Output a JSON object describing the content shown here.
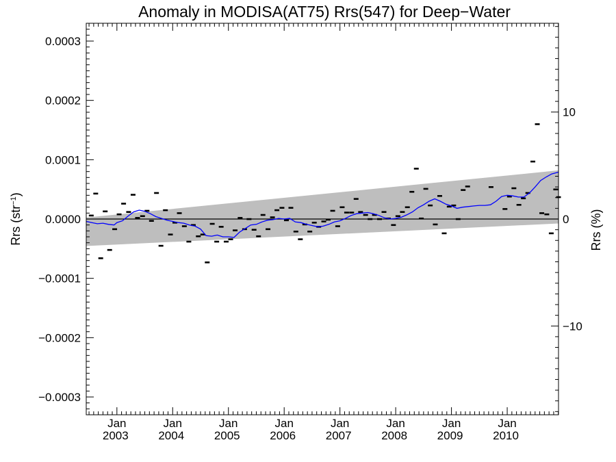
{
  "chart_data": {
    "type": "line",
    "title": "Anomaly in MODISA(AT75) Rrs(547) for Deep−Water",
    "ylabel_main": "Rrs (str",
    "ylabel_sup": "−1",
    "ylabel_close": ")",
    "ylabel_right": "Rrs (%)",
    "ylim": [
      -0.00033,
      0.00033
    ],
    "ylim_right": [
      -18.3,
      18.3
    ],
    "xlim": [
      2002.45,
      2010.92
    ],
    "y_ticks": [
      {
        "value": 0.0003,
        "label": "0.0003"
      },
      {
        "value": 0.0002,
        "label": "0.0002"
      },
      {
        "value": 0.0001,
        "label": "0.0001"
      },
      {
        "value": 0.0,
        "label": "0.0000"
      },
      {
        "value": -0.0001,
        "label": "−0.0001"
      },
      {
        "value": -0.0002,
        "label": "−0.0002"
      },
      {
        "value": -0.0003,
        "label": "−0.0003"
      }
    ],
    "y_ticks_right": [
      {
        "value": 10,
        "label": "10"
      },
      {
        "value": 0,
        "label": "0"
      },
      {
        "value": -10,
        "label": "−10"
      }
    ],
    "x_ticks": [
      {
        "value": 2003.0,
        "month": "Jan",
        "year": "2003"
      },
      {
        "value": 2004.0,
        "month": "Jan",
        "year": "2004"
      },
      {
        "value": 2005.0,
        "month": "Jan",
        "year": "2005"
      },
      {
        "value": 2006.0,
        "month": "Jan",
        "year": "2006"
      },
      {
        "value": 2007.0,
        "month": "Jan",
        "year": "2007"
      },
      {
        "value": 2008.0,
        "month": "Jan",
        "year": "2008"
      },
      {
        "value": 2009.0,
        "month": "Jan",
        "year": "2009"
      },
      {
        "value": 2010.0,
        "month": "Jan",
        "year": "2010"
      }
    ],
    "band": {
      "color": "#bebebe",
      "x": [
        2002.45,
        2010.92
      ],
      "upper": [
        2.5e-06,
        8.2e-05
      ],
      "lower": [
        -4.55e-05,
        -7.5e-06
      ]
    },
    "zero_line_color": "#000000",
    "series": [
      {
        "kind": "monthly_anomaly_markers",
        "color": "#000000",
        "x": [
          2002.54,
          2002.62,
          2002.71,
          2002.79,
          2002.87,
          2002.96,
          2003.04,
          2003.12,
          2003.21,
          2003.29,
          2003.37,
          2003.46,
          2003.54,
          2003.62,
          2003.71,
          2003.79,
          2003.87,
          2003.96,
          2004.04,
          2004.12,
          2004.21,
          2004.29,
          2004.37,
          2004.46,
          2004.54,
          2004.62,
          2004.71,
          2004.79,
          2004.87,
          2004.96,
          2005.04,
          2005.12,
          2005.21,
          2005.29,
          2005.37,
          2005.46,
          2005.54,
          2005.62,
          2005.71,
          2005.79,
          2005.87,
          2005.96,
          2006.04,
          2006.12,
          2006.21,
          2006.29,
          2006.37,
          2006.46,
          2006.54,
          2006.62,
          2006.71,
          2006.79,
          2006.87,
          2006.96,
          2007.04,
          2007.12,
          2007.21,
          2007.29,
          2007.37,
          2007.46,
          2007.54,
          2007.62,
          2007.71,
          2007.79,
          2007.87,
          2007.96,
          2008.04,
          2008.12,
          2008.21,
          2008.29,
          2008.37,
          2008.46,
          2008.54,
          2008.62,
          2008.71,
          2008.79,
          2008.87,
          2008.96,
          2009.04,
          2009.12,
          2009.21,
          2009.29,
          2009.71,
          2009.96,
          2010.04,
          2010.12,
          2010.21,
          2010.29,
          2010.37,
          2010.46,
          2010.54,
          2010.62,
          2010.71,
          2010.79,
          2010.87,
          2010.92
        ],
        "y": [
          6e-06,
          4.3e-05,
          -6.6e-05,
          1.3e-05,
          -5.2e-05,
          -1.7e-05,
          8e-06,
          2.6e-05,
          1.2e-05,
          4.1e-05,
          2e-06,
          5e-06,
          1.4e-05,
          -3e-06,
          4.4e-05,
          -4.5e-05,
          1.5e-05,
          -2.6e-05,
          -6e-06,
          1e-05,
          -1.2e-05,
          -3.8e-05,
          -1e-05,
          -2.9e-05,
          -2.6e-05,
          -7.3e-05,
          -8e-06,
          -3.8e-05,
          -1.3e-05,
          -3.8e-05,
          -3.4e-05,
          -1.9e-05,
          2e-06,
          -1.7e-05,
          0.0,
          -1.8e-05,
          -2.9e-05,
          7e-06,
          -1.7e-05,
          3e-06,
          1.5e-05,
          1.9e-05,
          -2e-06,
          1.9e-05,
          -2.1e-05,
          -3.4e-05,
          -9e-06,
          -2.1e-05,
          -6e-06,
          -1.3e-05,
          -4e-06,
          -1e-06,
          1.4e-05,
          -1.2e-05,
          2e-05,
          1.1e-05,
          1.1e-05,
          3.4e-05,
          1.2e-05,
          7e-06,
          0.0,
          7e-06,
          0.0,
          1.2e-05,
          1e-06,
          -1e-05,
          5e-06,
          1.2e-05,
          2e-05,
          4.6e-05,
          8.5e-05,
          1e-06,
          5.1e-05,
          2.3e-05,
          -9e-06,
          3.9e-05,
          -2.4e-05,
          2.1e-05,
          2.3e-05,
          0.0,
          4.9e-05,
          5.5e-05,
          5.4e-05,
          1.7e-05,
          3.8e-05,
          5.2e-05,
          2.4e-05,
          3.5e-05,
          4.4e-05,
          9.7e-05,
          0.00016,
          1e-05,
          8e-06,
          -2.4e-05,
          5e-05,
          3.7e-05
        ]
      },
      {
        "kind": "running_mean",
        "color": "#0000ff",
        "x": [
          2002.45,
          2002.55,
          2002.65,
          2002.75,
          2002.85,
          2002.95,
          2003.0,
          2003.1,
          2003.2,
          2003.3,
          2003.4,
          2003.5,
          2003.6,
          2003.7,
          2003.8,
          2003.9,
          2004.0,
          2004.1,
          2004.2,
          2004.3,
          2004.4,
          2004.5,
          2004.6,
          2004.7,
          2004.8,
          2004.9,
          2005.0,
          2005.1,
          2005.2,
          2005.3,
          2005.4,
          2005.5,
          2005.6,
          2005.7,
          2005.8,
          2005.9,
          2006.0,
          2006.1,
          2006.2,
          2006.3,
          2006.4,
          2006.5,
          2006.6,
          2006.7,
          2006.8,
          2006.9,
          2007.0,
          2007.1,
          2007.2,
          2007.3,
          2007.4,
          2007.5,
          2007.6,
          2007.7,
          2007.8,
          2007.9,
          2008.0,
          2008.1,
          2008.2,
          2008.3,
          2008.4,
          2008.5,
          2008.6,
          2008.7,
          2008.8,
          2008.9,
          2009.0,
          2009.1,
          2009.2,
          2009.3,
          2009.4,
          2009.5,
          2009.6,
          2009.7,
          2009.8,
          2009.9,
          2010.0,
          2010.1,
          2010.2,
          2010.3,
          2010.4,
          2010.5,
          2010.6,
          2010.7,
          2010.8,
          2010.92
        ],
        "y": [
          -4e-06,
          -6e-06,
          -8e-06,
          -7e-06,
          -9e-06,
          -1e-05,
          -6e-06,
          -3e-06,
          5e-06,
          1.2e-05,
          1.5e-05,
          1.3e-05,
          9e-06,
          4e-06,
          1e-06,
          -2e-06,
          -4e-06,
          -6e-06,
          -7e-06,
          -1e-05,
          -1.2e-05,
          -1.7e-05,
          -2.8e-05,
          -2.9e-05,
          -2.7e-05,
          -3e-05,
          -3e-05,
          -3.1e-05,
          -2.2e-05,
          -1.6e-05,
          -1e-05,
          -9e-06,
          -5e-06,
          -2e-06,
          -1e-06,
          1e-06,
          0.0,
          1e-06,
          -5e-06,
          -6e-06,
          -9e-06,
          -1.1e-05,
          -1.3e-05,
          -1.2e-05,
          -9e-06,
          -5e-06,
          -3e-06,
          1e-06,
          6e-06,
          9e-06,
          1e-05,
          1.1e-05,
          9e-06,
          6e-06,
          2e-06,
          0.0,
          1e-06,
          3e-06,
          7e-06,
          1.2e-05,
          1.9e-05,
          2.4e-05,
          3e-05,
          3.4e-05,
          3e-05,
          2.5e-05,
          2.2e-05,
          1.8e-05,
          2e-05,
          2.1e-05,
          2.2e-05,
          2.3e-05,
          2.3e-05,
          2.4e-05,
          3e-05,
          3.8e-05,
          4e-05,
          3.9e-05,
          3.7e-05,
          3.7e-05,
          4.4e-05,
          5.4e-05,
          6.5e-05,
          7.1e-05,
          7.6e-05,
          7.9e-05
        ]
      }
    ]
  }
}
